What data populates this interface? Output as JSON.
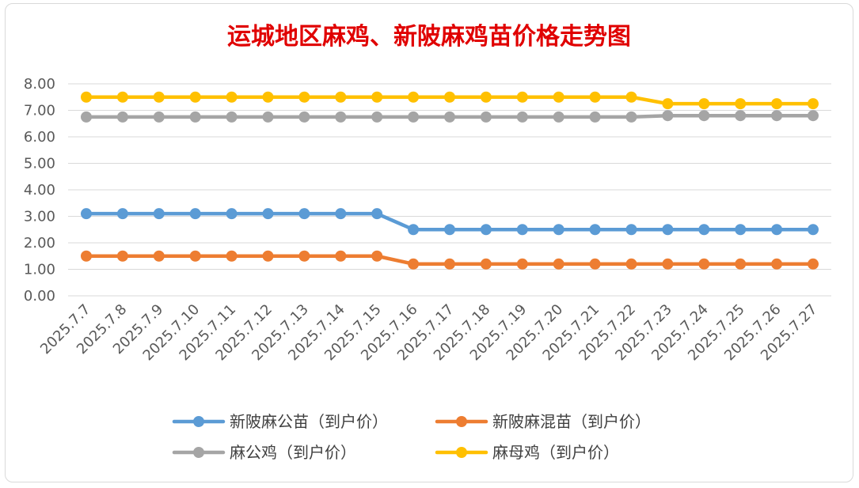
{
  "chart_data": {
    "type": "line",
    "title": "运城地区麻鸡、新陂麻鸡苗价格走势图",
    "xlabel": "",
    "ylabel": "",
    "ylim": [
      0,
      8
    ],
    "yticks": [
      "0.00",
      "1.00",
      "2.00",
      "3.00",
      "4.00",
      "5.00",
      "6.00",
      "7.00",
      "8.00"
    ],
    "grid": true,
    "legend_position": "bottom",
    "categories": [
      "2025.7.7",
      "2025.7.8",
      "2025.7.9",
      "2025.7.10",
      "2025.7.11",
      "2025.7.12",
      "2025.7.13",
      "2025.7.14",
      "2025.7.15",
      "2025.7.16",
      "2025.7.17",
      "2025.7.18",
      "2025.7.19",
      "2025.7.20",
      "2025.7.21",
      "2025.7.22",
      "2025.7.23",
      "2025.7.24",
      "2025.7.25",
      "2025.7.26",
      "2025.7.27"
    ],
    "series": [
      {
        "name": "新陂麻公苗（到户价）",
        "color": "#5b9bd5",
        "values": [
          3.1,
          3.1,
          3.1,
          3.1,
          3.1,
          3.1,
          3.1,
          3.1,
          3.1,
          2.5,
          2.5,
          2.5,
          2.5,
          2.5,
          2.5,
          2.5,
          2.5,
          2.5,
          2.5,
          2.5,
          2.5
        ]
      },
      {
        "name": "新陂麻混苗（到户价）",
        "color": "#ed7d31",
        "values": [
          1.5,
          1.5,
          1.5,
          1.5,
          1.5,
          1.5,
          1.5,
          1.5,
          1.5,
          1.2,
          1.2,
          1.2,
          1.2,
          1.2,
          1.2,
          1.2,
          1.2,
          1.2,
          1.2,
          1.2,
          1.2
        ]
      },
      {
        "name": "麻公鸡（到户价）",
        "color": "#a5a5a5",
        "values": [
          6.75,
          6.75,
          6.75,
          6.75,
          6.75,
          6.75,
          6.75,
          6.75,
          6.75,
          6.75,
          6.75,
          6.75,
          6.75,
          6.75,
          6.75,
          6.75,
          6.8,
          6.8,
          6.8,
          6.8,
          6.8
        ]
      },
      {
        "name": "麻母鸡（到户价）",
        "color": "#ffc000",
        "values": [
          7.5,
          7.5,
          7.5,
          7.5,
          7.5,
          7.5,
          7.5,
          7.5,
          7.5,
          7.5,
          7.5,
          7.5,
          7.5,
          7.5,
          7.5,
          7.5,
          7.25,
          7.25,
          7.25,
          7.25,
          7.25
        ]
      }
    ]
  }
}
